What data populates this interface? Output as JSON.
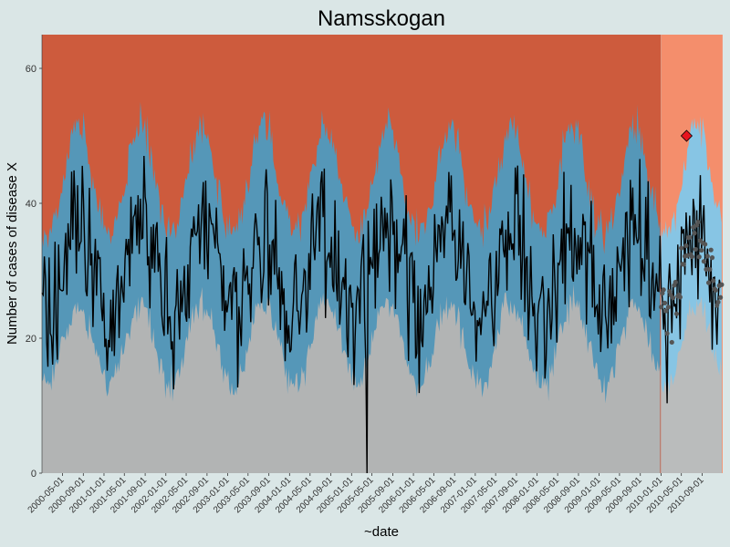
{
  "chart_data": {
    "type": "area",
    "title": "Namsskogan",
    "xlabel": "~date",
    "ylabel": "Number of cases of disease X",
    "ylim": [
      0,
      65
    ],
    "y_ticks": [
      0,
      20,
      40,
      60
    ],
    "x_range": [
      "2000-01-01",
      "2010-12-31"
    ],
    "forecast_start": "2010-01-01",
    "x_tick_labels": [
      "2000-05-01",
      "2000-09-01",
      "2001-01-01",
      "2001-05-01",
      "2001-09-01",
      "2002-01-01",
      "2002-05-01",
      "2002-09-01",
      "2003-01-01",
      "2003-05-01",
      "2003-09-01",
      "2004-01-01",
      "2004-05-01",
      "2004-09-01",
      "2005-01-01",
      "2005-05-01",
      "2005-09-01",
      "2006-01-01",
      "2006-05-01",
      "2006-09-01",
      "2007-01-01",
      "2007-05-01",
      "2007-09-01",
      "2008-01-01",
      "2008-05-01",
      "2008-09-01",
      "2009-01-01",
      "2009-05-01",
      "2009-09-01",
      "2010-01-01",
      "2010-05-01",
      "2010-09-01"
    ],
    "seasonal_model": {
      "baseline_mean": 30,
      "seasonal_amplitude": 6,
      "peak_month": 8,
      "lower_threshold_offset": -11,
      "upper_threshold_offset": 12
    },
    "series": [
      {
        "name": "Observed cases",
        "type": "line",
        "color": "#000000"
      },
      {
        "name": "Forecast cases",
        "type": "points",
        "color": "#555555"
      },
      {
        "name": "Outbreak",
        "type": "marker",
        "color": "#e8141e",
        "points": [
          {
            "x": "2010-06-01",
            "y": 50
          }
        ]
      }
    ],
    "notable_points": [
      {
        "x": "2005-04-01",
        "y": 0
      }
    ],
    "colors": {
      "background": "#dae6e6",
      "high_zone": "#cd5b3d",
      "expected_zone": "#5597b8",
      "low_zone": "#b2b4b4",
      "forecast_high_zone": "#f48e6c",
      "forecast_expected_zone": "#87c5e4",
      "forecast_low_zone": "#babcbc"
    }
  }
}
